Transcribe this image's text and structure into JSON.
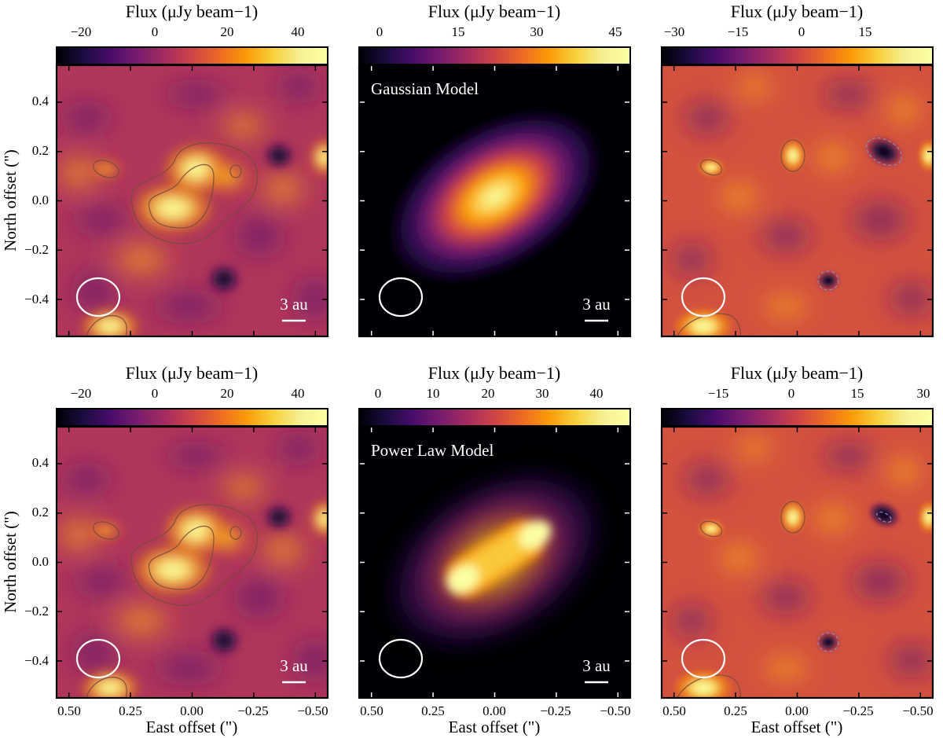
{
  "figure": {
    "colorbar_label": "Flux (μJy beam−1)",
    "x_axis_label": "East offset (\")",
    "y_axis_label": "North offset (\")",
    "x_tick_labels": [
      "0.50",
      "0.25",
      "0.00",
      "−0.25",
      "−0.50"
    ],
    "y_tick_labels": [
      "0.4",
      "0.2",
      "0.0",
      "−0.2",
      "−0.4"
    ],
    "scale_bar_label": "3 au",
    "colormap": "inferno"
  },
  "rows": [
    {
      "panels": [
        {
          "kind": "observation",
          "colorbar_ticks": [
            "−20",
            "0",
            "20",
            "40"
          ]
        },
        {
          "kind": "model",
          "label": "Gaussian Model",
          "colorbar_ticks": [
            "0",
            "15",
            "30",
            "45"
          ]
        },
        {
          "kind": "residual",
          "colorbar_ticks": [
            "−30",
            "−15",
            "0",
            "15"
          ]
        }
      ]
    },
    {
      "panels": [
        {
          "kind": "observation",
          "colorbar_ticks": [
            "−20",
            "0",
            "20",
            "40"
          ]
        },
        {
          "kind": "model",
          "label": "Power Law Model",
          "colorbar_ticks": [
            "0",
            "10",
            "20",
            "30",
            "40"
          ]
        },
        {
          "kind": "residual",
          "colorbar_ticks": [
            "−15",
            "0",
            "15",
            "30"
          ]
        }
      ]
    }
  ],
  "chart_data": {
    "type": "heatmap",
    "xlim": [
      0.55,
      -0.55
    ],
    "ylim": [
      -0.55,
      0.55
    ],
    "x_ticks": [
      0.5,
      0.25,
      0.0,
      -0.25,
      -0.5
    ],
    "y_ticks": [
      0.4,
      0.2,
      0.0,
      -0.2,
      -0.4
    ],
    "colorbars": [
      {
        "panel": "row1-observation",
        "ticks": [
          -20,
          0,
          20,
          40
        ],
        "range": [
          -28,
          50
        ]
      },
      {
        "panel": "row1-gaussian-model",
        "ticks": [
          0,
          15,
          30,
          45
        ],
        "range": [
          0,
          50
        ]
      },
      {
        "panel": "row1-residual",
        "ticks": [
          -30,
          -15,
          0,
          15
        ],
        "range": [
          -34,
          28
        ]
      },
      {
        "panel": "row2-observation",
        "ticks": [
          -20,
          0,
          20,
          40
        ],
        "range": [
          -28,
          50
        ]
      },
      {
        "panel": "row2-power-law-model",
        "ticks": [
          0,
          10,
          20,
          30,
          40
        ],
        "range": [
          0,
          46
        ]
      },
      {
        "panel": "row2-residual",
        "ticks": [
          -15,
          0,
          15,
          30
        ],
        "range": [
          -24,
          32
        ]
      }
    ]
  }
}
